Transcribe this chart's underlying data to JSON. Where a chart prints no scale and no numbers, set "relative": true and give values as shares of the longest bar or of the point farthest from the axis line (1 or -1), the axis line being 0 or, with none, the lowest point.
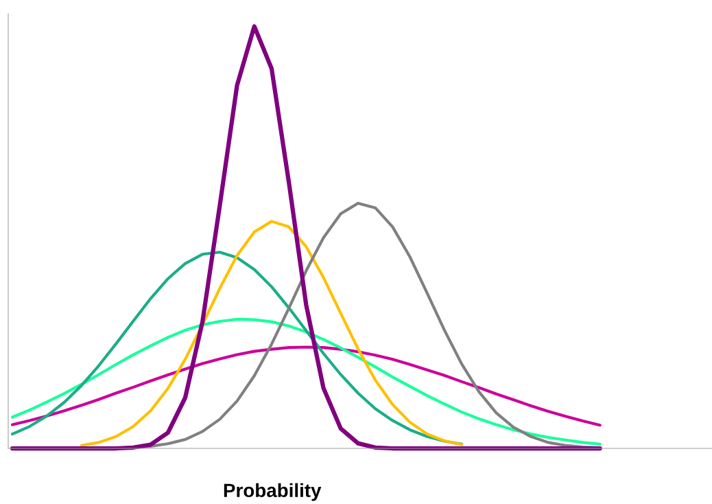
{
  "chart_data": {
    "type": "line",
    "relative": true,
    "xlabel": "Probability",
    "tick_labels": false,
    "marker": "none",
    "line_style": "solid",
    "categories": [
      null,
      null,
      null,
      null,
      null,
      null,
      null,
      null,
      null,
      null,
      null,
      null,
      null,
      null,
      null,
      null,
      null,
      null,
      null,
      null,
      null,
      null,
      null,
      null,
      null,
      null,
      null,
      null,
      null,
      null,
      null,
      null,
      null,
      null,
      null
    ],
    "series": [
      {
        "color": "#cc0099",
        "values": [
          0.056,
          0.066,
          0.077,
          0.089,
          0.102,
          0.116,
          0.131,
          0.145,
          0.16,
          0.174,
          0.188,
          0.201,
          0.212,
          0.222,
          0.23,
          0.235,
          0.239,
          0.24,
          0.239,
          0.235,
          0.229,
          0.221,
          0.211,
          0.199,
          0.186,
          0.173,
          0.158,
          0.144,
          0.129,
          0.115,
          0.101,
          0.088,
          0.076,
          0.065,
          0.055
        ]
      },
      {
        "color": "#1aff9c",
        "values": [
          0.074,
          0.091,
          0.11,
          0.13,
          0.152,
          0.175,
          0.199,
          0.222,
          0.243,
          0.263,
          0.28,
          0.293,
          0.301,
          0.306,
          0.305,
          0.3,
          0.29,
          0.276,
          0.258,
          0.238,
          0.216,
          0.193,
          0.169,
          0.147,
          0.125,
          0.105,
          0.086,
          0.07,
          0.056,
          0.044,
          0.034,
          0.026,
          0.02,
          0.014,
          0.01
        ]
      },
      {
        "color": "#1aae88",
        "values": [
          0.034,
          0.052,
          0.077,
          0.109,
          0.149,
          0.196,
          0.248,
          0.302,
          0.355,
          0.402,
          0.438,
          0.46,
          0.465,
          0.452,
          0.424,
          0.383,
          0.333,
          0.279,
          0.225,
          0.175,
          0.131,
          0.094,
          0.066,
          0.044,
          0.028,
          0.017,
          0.01,
          null,
          null,
          null,
          null,
          null,
          null,
          null,
          null
        ]
      },
      {
        "color": "#ffc000",
        "values": [
          null,
          null,
          null,
          null,
          0.007,
          0.014,
          0.028,
          0.052,
          0.089,
          0.142,
          0.211,
          0.293,
          0.379,
          0.457,
          0.513,
          0.538,
          0.525,
          0.478,
          0.405,
          0.32,
          0.236,
          0.162,
          0.104,
          0.062,
          0.034,
          0.018,
          0.009,
          null,
          null,
          null,
          null,
          null,
          null,
          null,
          null
        ]
      },
      {
        "color": "#808080",
        "values": [
          null,
          null,
          null,
          null,
          null,
          null,
          null,
          0.002,
          0.005,
          0.011,
          0.021,
          0.04,
          0.069,
          0.112,
          0.172,
          0.247,
          0.332,
          0.421,
          0.499,
          0.556,
          0.581,
          0.57,
          0.525,
          0.454,
          0.368,
          0.28,
          0.2,
          0.134,
          0.084,
          0.05,
          0.028,
          0.014,
          0.007,
          0.003,
          0.001
        ]
      },
      {
        "color": "#800080",
        "values": [
          0,
          0,
          0,
          0,
          0,
          0,
          0,
          0.002,
          0.009,
          0.037,
          0.12,
          0.3,
          0.575,
          0.86,
          1.0,
          0.9,
          0.63,
          0.34,
          0.143,
          0.047,
          0.012,
          0.002,
          0,
          0,
          0,
          0,
          0,
          0,
          0,
          0,
          0,
          0,
          0,
          0,
          0
        ]
      }
    ]
  }
}
